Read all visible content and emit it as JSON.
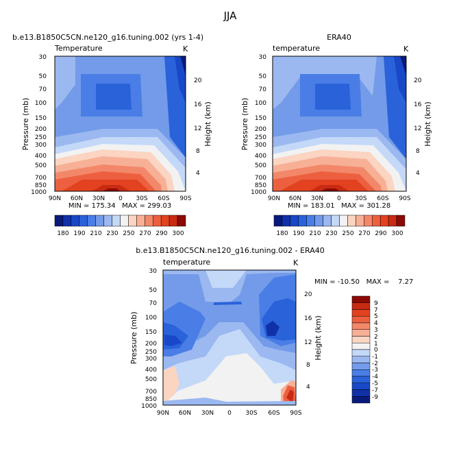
{
  "figure_title": "JJA",
  "chart_data": [
    {
      "type": "heatmap",
      "title": "b.e13.B1850C5CN.ne120_g16.tuning.002 (yrs 1-4)",
      "left_label": "Temperature",
      "right_label": "K",
      "xlabel": "",
      "ylabel": "Pressure (mb)",
      "y2label": "Height (km)",
      "xticks": [
        "90N",
        "60N",
        "30N",
        "0",
        "30S",
        "60S",
        "90S"
      ],
      "yticks": [
        "30",
        "50",
        "70",
        "100",
        "150",
        "200",
        "250",
        "300",
        "400",
        "500",
        "700",
        "850",
        "1000"
      ],
      "y2ticks": [
        "20",
        "16",
        "12",
        "8",
        "4"
      ],
      "stats": "MIN = 175.34   MAX = 299.03",
      "colorbar": {
        "orientation": "horizontal",
        "levels": [
          180,
          190,
          200,
          210,
          220,
          230,
          240,
          250,
          260,
          270,
          280,
          290,
          300
        ],
        "labels": [
          "180",
          "190",
          "210",
          "230",
          "250",
          "270",
          "290",
          "300"
        ],
        "colors": [
          "#0a1a7a",
          "#1030a8",
          "#1848c8",
          "#2a62da",
          "#4a7ee6",
          "#739be9",
          "#9bb8f0",
          "#c4d8f8",
          "#f2f2f2",
          "#fbd4c2",
          "#f7b096",
          "#f3876a",
          "#ec6040",
          "#e2421f",
          "#c82a12",
          "#8b0a06"
        ]
      }
    },
    {
      "type": "heatmap",
      "title": "ERA40",
      "left_label": "temperature",
      "right_label": "K",
      "xlabel": "",
      "ylabel": "Pressure (mb)",
      "y2label": "Height (km)",
      "xticks": [
        "90N",
        "60N",
        "30N",
        "0",
        "30S",
        "60S",
        "90S"
      ],
      "yticks": [
        "30",
        "50",
        "70",
        "100",
        "150",
        "200",
        "250",
        "300",
        "400",
        "500",
        "700",
        "850",
        "1000"
      ],
      "y2ticks": [
        "20",
        "16",
        "12",
        "8",
        "4"
      ],
      "stats": "MIN = 183.01   MAX = 301.28",
      "colorbar": {
        "orientation": "horizontal",
        "levels": [
          180,
          190,
          200,
          210,
          220,
          230,
          240,
          250,
          260,
          270,
          280,
          290,
          300
        ],
        "labels": [
          "180",
          "190",
          "210",
          "230",
          "250",
          "270",
          "290",
          "300"
        ],
        "colors": [
          "#0a1a7a",
          "#1030a8",
          "#1848c8",
          "#2a62da",
          "#4a7ee6",
          "#739be9",
          "#9bb8f0",
          "#c4d8f8",
          "#f2f2f2",
          "#fbd4c2",
          "#f7b096",
          "#f3876a",
          "#ec6040",
          "#e2421f",
          "#c82a12",
          "#8b0a06"
        ]
      }
    },
    {
      "type": "heatmap",
      "title": "b.e13.B1850C5CN.ne120_g16.tuning.002 - ERA40",
      "left_label": "temperature",
      "right_label": "K",
      "xlabel": "",
      "ylabel": "Pressure (mb)",
      "y2label": "Height (km)",
      "xticks": [
        "90N",
        "60N",
        "30N",
        "0",
        "30S",
        "60S",
        "90S"
      ],
      "yticks": [
        "30",
        "50",
        "70",
        "100",
        "150",
        "200",
        "250",
        "300",
        "400",
        "500",
        "700",
        "850",
        "1000"
      ],
      "y2ticks": [
        "20",
        "16",
        "12",
        "8",
        "4"
      ],
      "stats": "MIN = -10.50   MAX =    7.27",
      "colorbar": {
        "orientation": "vertical",
        "labels": [
          "9",
          "7",
          "5",
          "4",
          "3",
          "2",
          "1",
          "0",
          "-1",
          "-2",
          "-3",
          "-4",
          "-5",
          "-7",
          "-9"
        ],
        "colors": [
          "#8b0a06",
          "#c82a12",
          "#e2421f",
          "#ec6040",
          "#f3876a",
          "#f7b096",
          "#fbd4c2",
          "#f2f2f2",
          "#c4d8f8",
          "#9bb8f0",
          "#739be9",
          "#4a7ee6",
          "#2a62da",
          "#1848c8",
          "#1030a8",
          "#0a1a7a"
        ]
      }
    }
  ]
}
